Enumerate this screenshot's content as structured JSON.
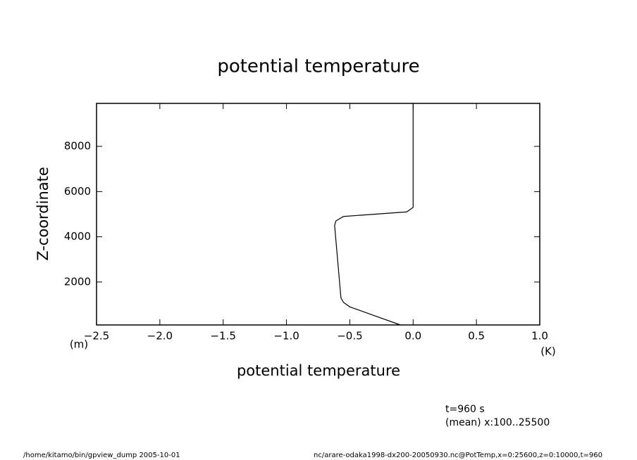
{
  "chart_data": {
    "type": "line",
    "title": "potential temperature",
    "x_label": "potential temperature",
    "y_label": "Z-coordinate",
    "x_unit": "(K)",
    "y_unit": "(m)",
    "annotations": [
      "t=960 s",
      "(mean) x:100..25500"
    ],
    "footer_left": "/home/kitamo/bin/gpview_dump  2005-10-01",
    "footer_right": "nc/arare-odaka1998-dx200-20050930.nc@PotTemp,x=0:25600,z=0:10000,t=960",
    "xlim": [
      -2.5,
      1.0
    ],
    "ylim": [
      100,
      9900
    ],
    "xticks": [
      {
        "value": -2.5,
        "label": "−2.5"
      },
      {
        "value": -2.0,
        "label": "−2.0"
      },
      {
        "value": -1.5,
        "label": "−1.5"
      },
      {
        "value": -1.0,
        "label": "−1.0"
      },
      {
        "value": -0.5,
        "label": "−0.5"
      },
      {
        "value": 0,
        "label": "0.0"
      },
      {
        "value": 0.5,
        "label": "0.5"
      },
      {
        "value": 1,
        "label": "1.0"
      }
    ],
    "yticks": [
      2000,
      4000,
      6000,
      8000
    ],
    "color": "#000000",
    "x": [
      -0.1,
      -0.3,
      -0.5,
      -0.55,
      -0.57,
      -0.62,
      -0.61,
      -0.55,
      -0.05,
      0.0,
      0.0
    ],
    "y": [
      100,
      500,
      900,
      1100,
      1300,
      4500,
      4700,
      4900,
      5100,
      5300,
      9900
    ]
  }
}
